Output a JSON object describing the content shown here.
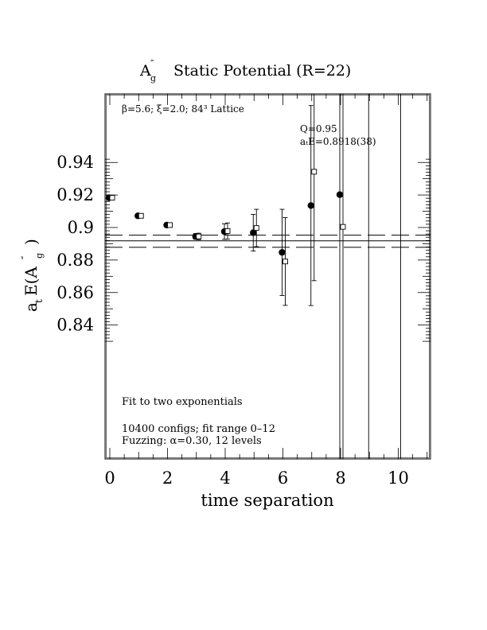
{
  "chart_data": {
    "type": "scatter",
    "title": {
      "symbol": "A",
      "symbol_super": "″",
      "symbol_sub": "g",
      "text": "Static Potential (R=22)"
    },
    "xlabel": "time separation",
    "ylabel": {
      "prefix": "a",
      "prefix_sub": "t",
      "main": "E(A",
      "super": "″",
      "sub": "g",
      "close": ")"
    },
    "xlim": [
      0,
      11
    ],
    "ylim": [
      0.83,
      0.942
    ],
    "x_ticks": [
      {
        "value": 0,
        "label": "0"
      },
      {
        "value": 2,
        "label": "2"
      },
      {
        "value": 4,
        "label": "4"
      },
      {
        "value": 6,
        "label": "6"
      },
      {
        "value": 8,
        "label": "8"
      },
      {
        "value": 10,
        "label": "10"
      }
    ],
    "y_ticks": [
      {
        "value": 0.84,
        "label": "0.84"
      },
      {
        "value": 0.86,
        "label": "0.86"
      },
      {
        "value": 0.88,
        "label": "0.88"
      },
      {
        "value": 0.9,
        "label": "0.9"
      },
      {
        "value": 0.92,
        "label": "0.92"
      },
      {
        "value": 0.94,
        "label": "0.94"
      }
    ],
    "annotations": {
      "lattice": "β=5.6; ξ=2.0; 84³ Lattice",
      "fit_q": "Q=0.95",
      "fit_energy": "aₜE=0.8918(38)",
      "fit_type": "Fit to two exponentials",
      "configs": "10400 configs; fit range 0–12",
      "fuzzing": "Fuzzing: α=0.30, 12 levels"
    },
    "fit": {
      "value": 0.8918,
      "upper": 0.8953,
      "lower": 0.8878
    },
    "series": [
      {
        "marker": "filled-circle",
        "points": [
          {
            "x": 0,
            "y": 0.9183,
            "err": 0.0005
          },
          {
            "x": 1,
            "y": 0.9072,
            "err": 0.0005
          },
          {
            "x": 2,
            "y": 0.9015,
            "err": 0.0007
          },
          {
            "x": 3,
            "y": 0.8945,
            "err": 0.0017
          },
          {
            "x": 4,
            "y": 0.8975,
            "err": 0.0048
          },
          {
            "x": 5,
            "y": 0.8968,
            "err": 0.0113
          },
          {
            "x": 6,
            "y": 0.8847,
            "err": 0.0265
          },
          {
            "x": 7,
            "y": 0.9135,
            "err": 0.0615
          },
          {
            "x": 8,
            "y": 0.9202,
            "err": 0.2
          },
          {
            "x": 9,
            "y": null,
            "err": 0.5
          }
        ]
      },
      {
        "marker": "open-square",
        "points": [
          {
            "x": 0,
            "y": 0.9183,
            "err": 0.0005
          },
          {
            "x": 1,
            "y": 0.9072,
            "err": 0.0005
          },
          {
            "x": 2,
            "y": 0.9015,
            "err": 0.0007
          },
          {
            "x": 3,
            "y": 0.8945,
            "err": 0.002
          },
          {
            "x": 4,
            "y": 0.8978,
            "err": 0.005
          },
          {
            "x": 5,
            "y": 0.8997,
            "err": 0.0115
          },
          {
            "x": 6,
            "y": 0.8791,
            "err": 0.027
          },
          {
            "x": 7,
            "y": 0.9343,
            "err": 0.067
          },
          {
            "x": 8,
            "y": 0.9004,
            "err": 0.2
          },
          {
            "x": 10,
            "y": null,
            "err": 0.5
          }
        ]
      }
    ]
  }
}
